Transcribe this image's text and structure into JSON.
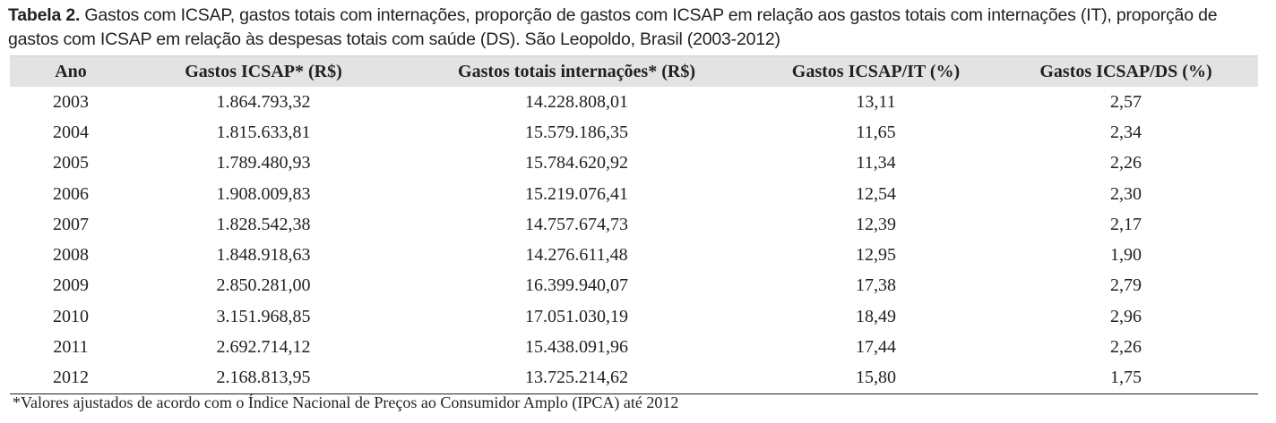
{
  "caption": {
    "label": "Tabela 2.",
    "text": " Gastos com ICSAP, gastos totais com internações, proporção de gastos com ICSAP em relação aos gastos totais com internações (IT), proporção de gastos com ICSAP em relação às despesas totais com saúde (DS). São Leopoldo, Brasil (2003-2012)"
  },
  "table": {
    "headers": [
      "Ano",
      "Gastos ICSAP* (R$)",
      "Gastos totais internações* (R$)",
      "Gastos ICSAP/IT (%)",
      "Gastos ICSAP/DS (%)"
    ],
    "rows": [
      [
        "2003",
        "1.864.793,32",
        "14.228.808,01",
        "13,11",
        "2,57"
      ],
      [
        "2004",
        "1.815.633,81",
        "15.579.186,35",
        "11,65",
        "2,34"
      ],
      [
        "2005",
        "1.789.480,93",
        "15.784.620,92",
        "11,34",
        "2,26"
      ],
      [
        "2006",
        "1.908.009,83",
        "15.219.076,41",
        "12,54",
        "2,30"
      ],
      [
        "2007",
        "1.828.542,38",
        "14.757.674,73",
        "12,39",
        "2,17"
      ],
      [
        "2008",
        "1.848.918,63",
        "14.276.611,48",
        "12,95",
        "1,90"
      ],
      [
        "2009",
        "2.850.281,00",
        "16.399.940,07",
        "17,38",
        "2,79"
      ],
      [
        "2010",
        "3.151.968,85",
        "17.051.030,19",
        "18,49",
        "2,96"
      ],
      [
        "2011",
        "2.692.714,12",
        "15.438.091,96",
        "17,44",
        "2,26"
      ],
      [
        "2012",
        "2.168.813,95",
        "13.725.214,62",
        "15,80",
        "1,75"
      ]
    ]
  },
  "footnote": "*Valores ajustados de acordo com o Índice Nacional de Preços ao Consumidor Amplo (IPCA) até 2012"
}
